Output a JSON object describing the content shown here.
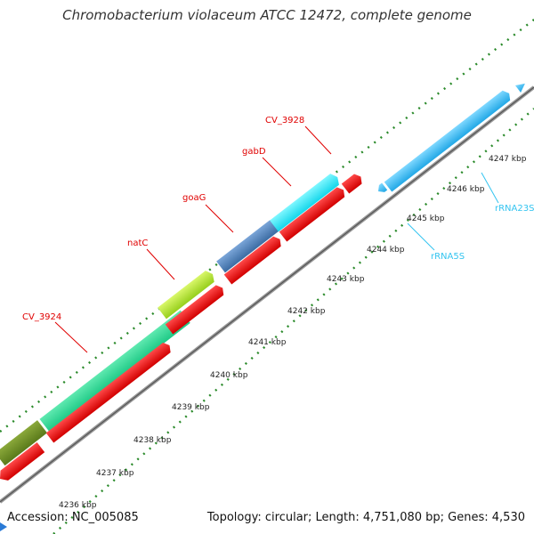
{
  "title": "Chromobacterium violaceum ATCC 12472, complete genome",
  "footer": {
    "accession": "Accession: NC_005085",
    "stats": "Topology: circular; Length: 4,751,080 bp; Genes: 4,530"
  },
  "colors": {
    "cds_forward": "#ff0000",
    "cds_reverse": "#ff0000",
    "gene_label": "#e00000",
    "rrna": "#33c4f0",
    "rrna_label": "#33c4f0",
    "backbone": "#888888",
    "tick": "#1a7a1a"
  },
  "scale": {
    "unit": "kbp",
    "ticks": [
      "4236 kbp",
      "4237 kbp",
      "4238 kbp",
      "4239 kbp",
      "4240 kbp",
      "4241 kbp",
      "4242 kbp",
      "4243 kbp",
      "4244 kbp",
      "4245 kbp",
      "4246 kbp",
      "4247 kbp"
    ]
  },
  "gene_labels": [
    "CV_3924",
    "natC",
    "goaG",
    "gabD",
    "CV_3928"
  ],
  "rrna_labels": [
    "rRNA5S",
    "rRNA23S"
  ]
}
